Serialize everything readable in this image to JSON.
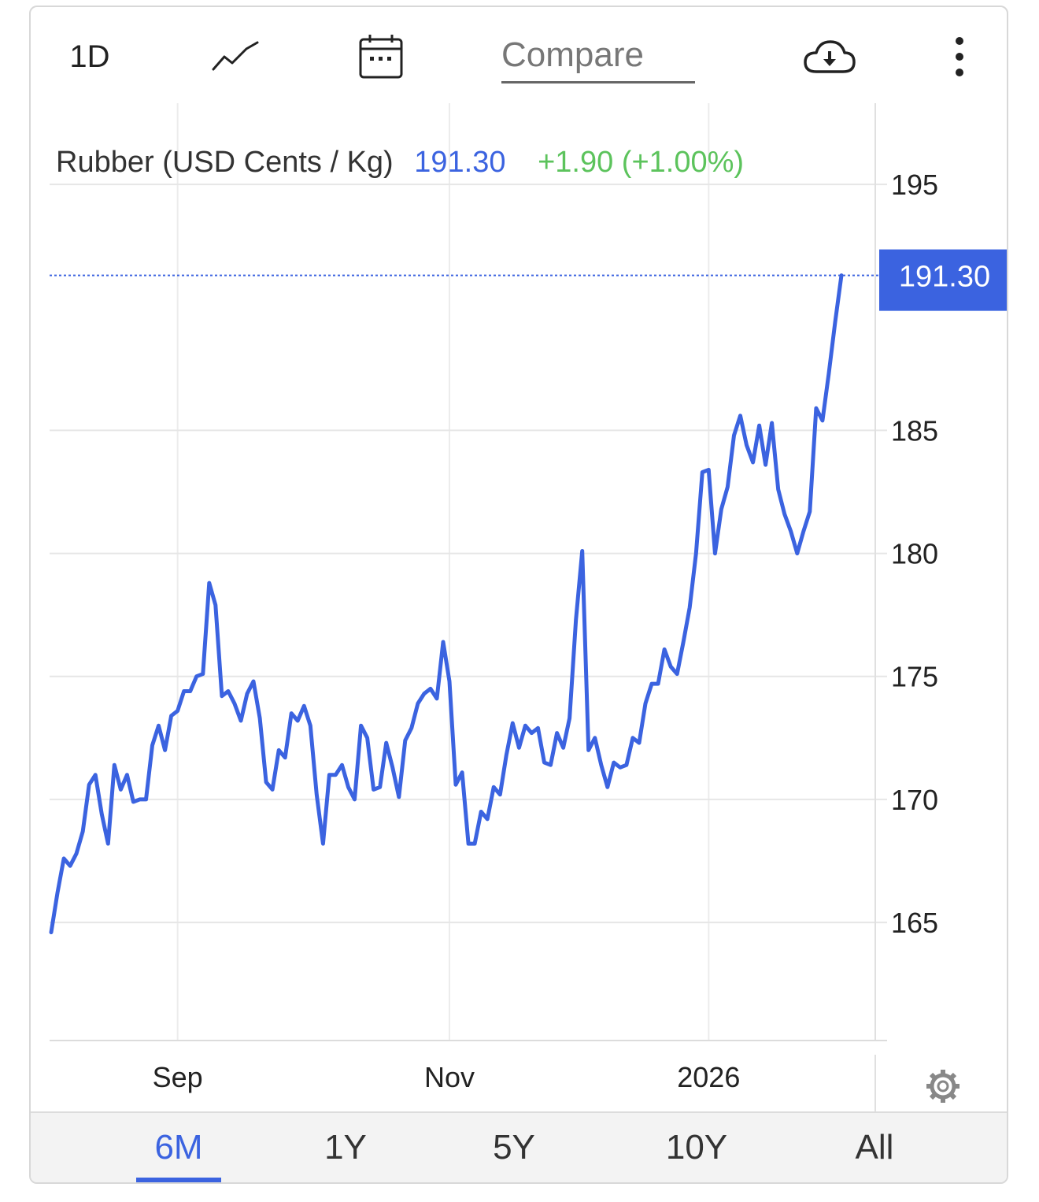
{
  "toolbar": {
    "interval_label": "1D",
    "compare_label": "Compare",
    "line_icon": "line-chart-icon",
    "calendar_icon": "calendar-icon",
    "download_icon": "cloud-download-icon",
    "more_icon": "more-vertical-icon"
  },
  "header": {
    "title": "Rubber (USD Cents / Kg)",
    "price": "191.30",
    "change": "+1.90 (+1.00%)",
    "price_color": "#3b63e0",
    "change_color": "#5cc35c"
  },
  "settings_icon": "gear-icon",
  "range_tabs": [
    {
      "label": "6M",
      "active": true
    },
    {
      "label": "1Y",
      "active": false
    },
    {
      "label": "5Y",
      "active": false
    },
    {
      "label": "10Y",
      "active": false
    },
    {
      "label": "All",
      "active": false
    }
  ],
  "chart_data": {
    "type": "line",
    "series": [
      {
        "values": [
          164.6,
          166.2,
          167.6,
          167.3,
          167.8,
          168.7,
          170.6,
          171.0,
          169.4,
          168.2,
          171.4,
          170.4,
          171.0,
          169.9,
          170.0,
          170.0,
          172.2,
          173.0,
          172.0,
          173.4,
          173.6,
          174.4,
          174.4,
          175.0,
          175.1,
          178.8,
          177.9,
          174.2,
          174.4,
          173.9,
          173.2,
          174.3,
          174.8,
          173.3,
          170.7,
          170.4,
          172.0,
          171.7,
          173.5,
          173.2,
          173.8,
          173.0,
          170.2,
          168.2,
          171.0,
          171.0,
          171.4,
          170.5,
          170.0,
          173.0,
          172.5,
          170.4,
          170.5,
          172.3,
          171.3,
          170.1,
          172.4,
          172.9,
          173.9,
          174.3,
          174.5,
          174.1,
          176.4,
          174.8,
          170.6,
          171.1,
          168.2,
          168.2,
          169.5,
          169.2,
          170.5,
          170.2,
          171.8,
          173.1,
          172.1,
          173.0,
          172.7,
          172.9,
          171.5,
          171.4,
          172.7,
          172.1,
          173.3,
          177.3,
          180.1,
          172.0,
          172.5,
          171.4,
          170.5,
          171.5,
          171.3,
          171.4,
          172.5,
          172.3,
          173.9,
          174.7,
          174.7,
          176.1,
          175.4,
          175.1,
          176.4,
          177.8,
          180.0,
          183.3,
          183.4,
          180.0,
          181.8,
          182.7,
          184.8,
          185.6,
          184.4,
          183.7,
          185.2,
          183.6,
          185.3,
          182.6,
          181.6,
          180.9,
          180.0,
          180.9,
          181.7,
          185.9,
          185.4,
          187.3,
          189.4,
          191.3
        ]
      }
    ],
    "x_labels": [
      {
        "label": "Sep",
        "index": 20
      },
      {
        "label": "Nov",
        "index": 63
      },
      {
        "label": "2026",
        "index": 104
      }
    ],
    "y_ticks": [
      165,
      170,
      175,
      180,
      185,
      195
    ],
    "ylim": [
      160.2,
      198.3
    ],
    "last_value_label": "191.30",
    "line_color": "#3b63e0",
    "grid": true
  }
}
